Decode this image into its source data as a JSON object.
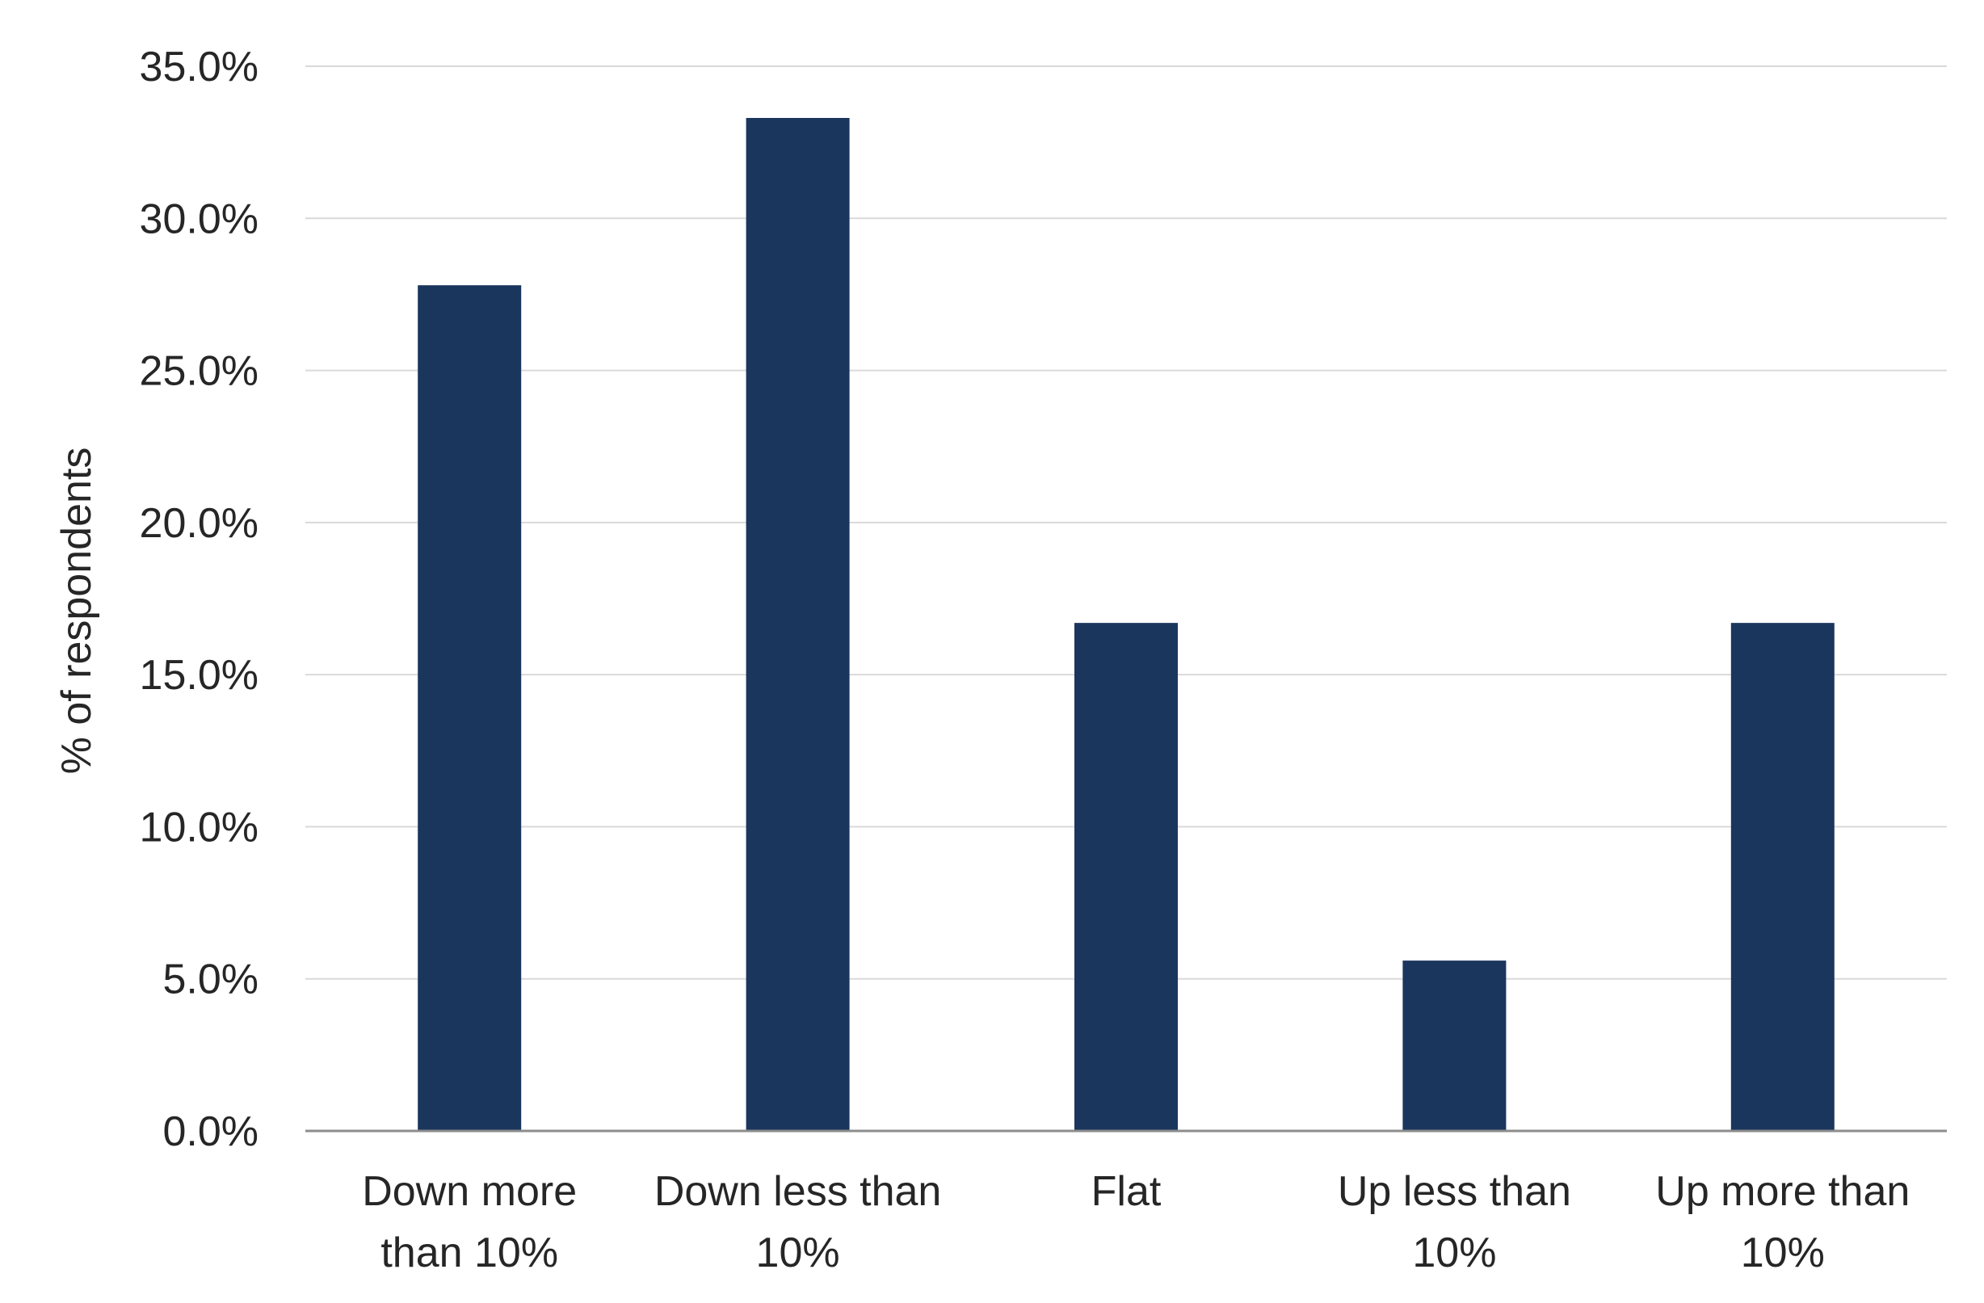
{
  "chart_data": {
    "type": "bar",
    "title": "",
    "xlabel": "",
    "ylabel": "% of respondents",
    "categories": [
      [
        "Down more",
        "than 10%"
      ],
      [
        "Down less than",
        "10%"
      ],
      [
        "Flat"
      ],
      [
        "Up less than",
        "10%"
      ],
      [
        "Up more than",
        "10%"
      ]
    ],
    "values": [
      27.8,
      33.3,
      16.7,
      5.6,
      16.7
    ],
    "ylim": [
      0,
      35
    ],
    "y_ticks": [
      0,
      5,
      10,
      15,
      20,
      25,
      30,
      35
    ],
    "y_tick_labels": [
      "0.0%",
      "5.0%",
      "10.0%",
      "15.0%",
      "20.0%",
      "25.0%",
      "30.0%",
      "35.0%"
    ],
    "grid": true,
    "legend": "none",
    "colors": {
      "bar": "#1b365d",
      "grid": "#d9d9d9",
      "axis": "#8c8c8c",
      "text": "#262626"
    }
  }
}
